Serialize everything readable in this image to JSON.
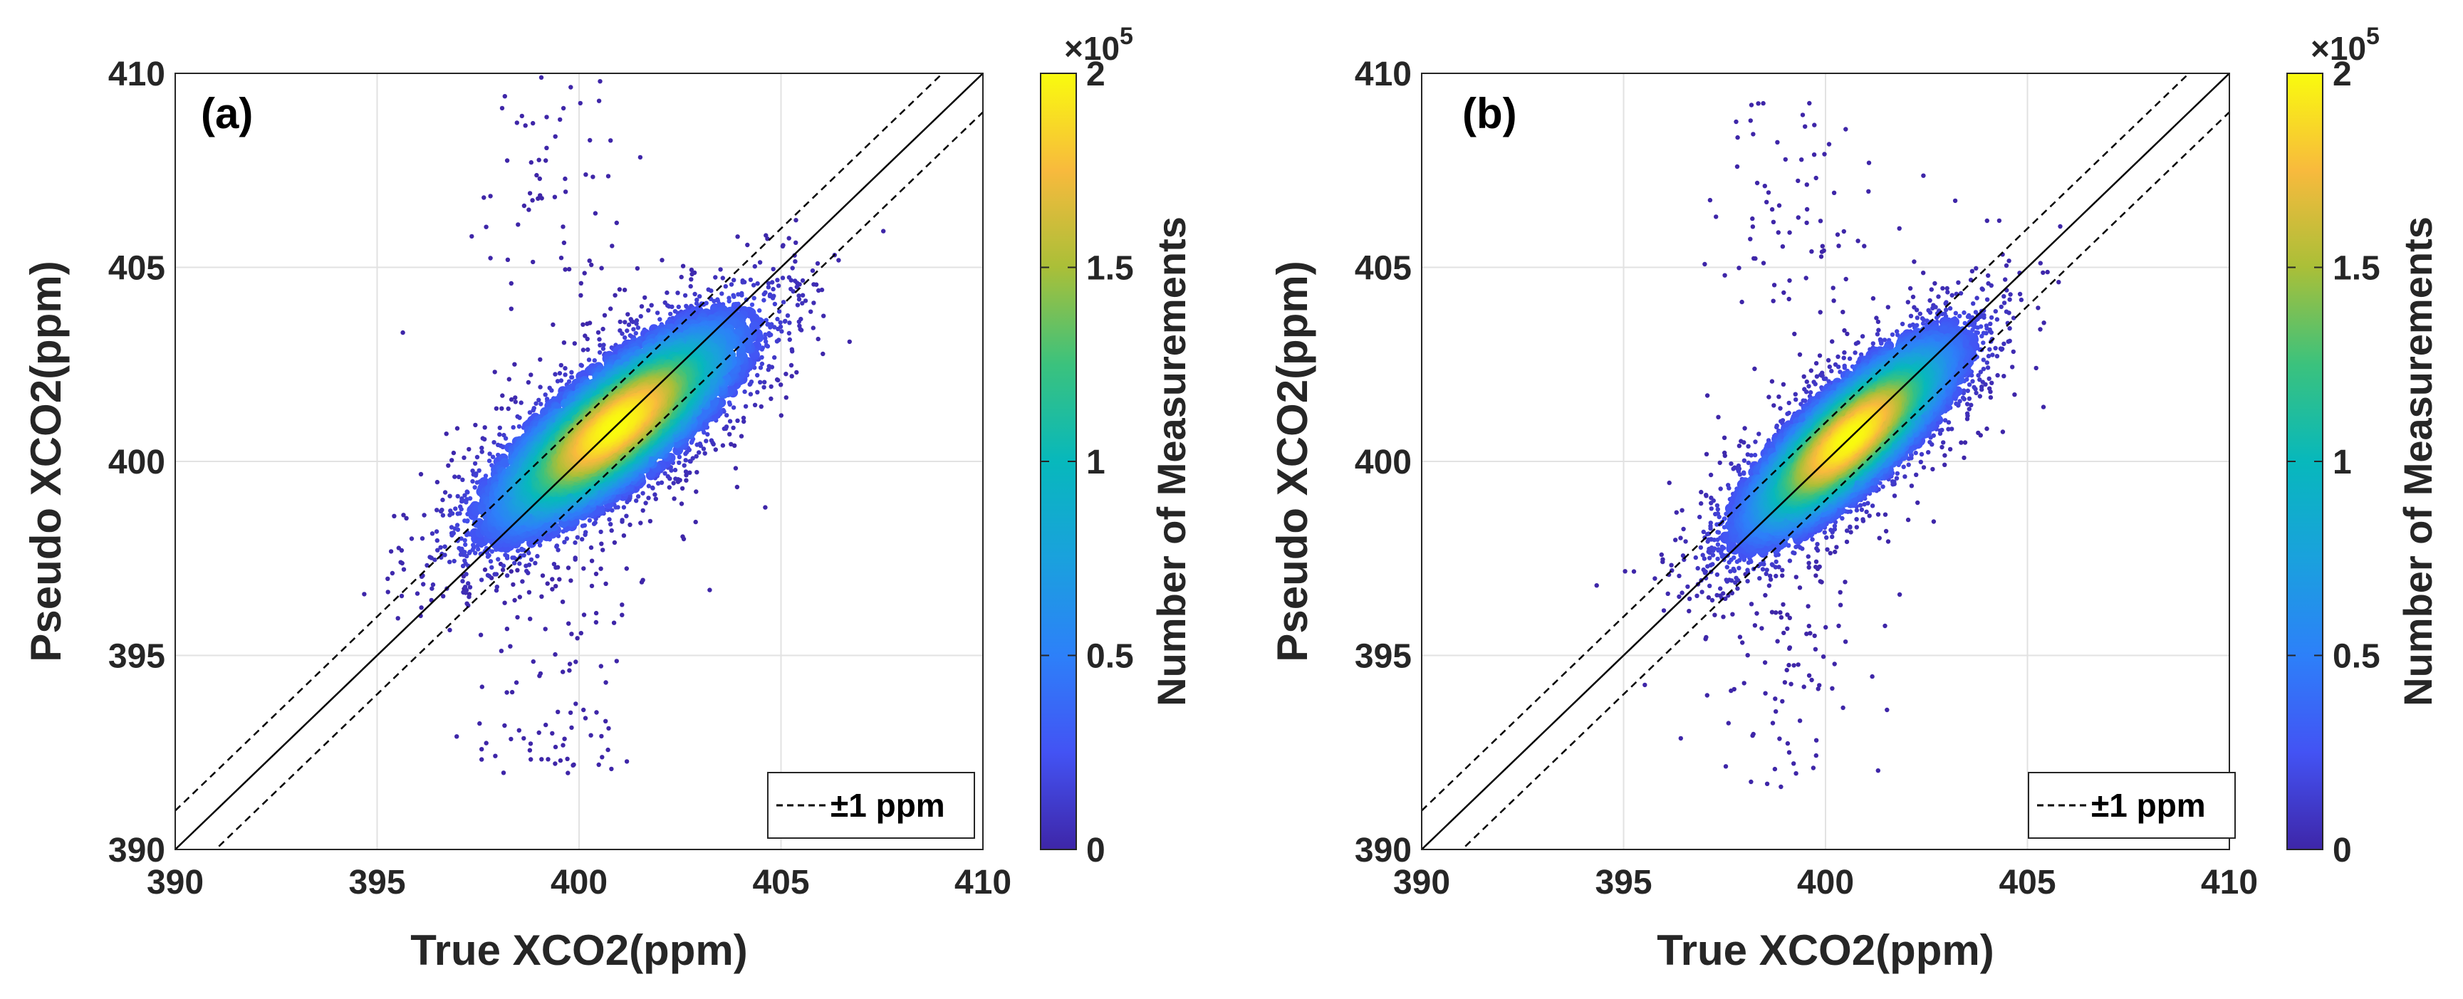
{
  "chart_data": [
    {
      "type": "scatter",
      "panel_label": "(a)",
      "xlabel": "True XCO2(ppm)",
      "ylabel": "Pseudo XCO2(ppm)",
      "xlim": [
        390,
        410
      ],
      "ylim": [
        390,
        410
      ],
      "x_ticks": [
        "390",
        "395",
        "400",
        "405",
        "410"
      ],
      "y_ticks": [
        "390",
        "395",
        "400",
        "405",
        "410"
      ],
      "grid": true,
      "lines": [
        {
          "name": "1:1",
          "style": "solid",
          "offset": 0
        },
        {
          "name": "±1 ppm",
          "style": "dashed",
          "offset": 1
        },
        {
          "name": "±1 ppm",
          "style": "dashed",
          "offset": -1
        }
      ],
      "legend": {
        "label": "±1 ppm",
        "position": "bottom-right"
      },
      "density": {
        "center": [
          400.9,
          400.9
        ],
        "sd_major": 2.2,
        "sd_minor": 0.75,
        "angle_deg": 40,
        "peak": 200000
      },
      "colorbar": {
        "label": "Number of Measurements",
        "range": [
          0,
          200000
        ],
        "tick_labels": [
          "0",
          "0.5",
          "1",
          "1.5",
          "2"
        ],
        "multiplier_base": "×10",
        "multiplier_exp": "5"
      }
    },
    {
      "type": "scatter",
      "panel_label": "(b)",
      "xlabel": "True XCO2(ppm)",
      "ylabel": "Pseudo XCO2(ppm)",
      "xlim": [
        390,
        410
      ],
      "ylim": [
        390,
        410
      ],
      "x_ticks": [
        "390",
        "395",
        "400",
        "405",
        "410"
      ],
      "y_ticks": [
        "390",
        "395",
        "400",
        "405",
        "410"
      ],
      "grid": true,
      "lines": [
        {
          "name": "1:1",
          "style": "solid",
          "offset": 0
        },
        {
          "name": "±1 ppm",
          "style": "dashed",
          "offset": 1
        },
        {
          "name": "±1 ppm",
          "style": "dashed",
          "offset": -1
        }
      ],
      "legend": {
        "label": "±1 ppm",
        "position": "bottom-right"
      },
      "density": {
        "center": [
          400.6,
          400.6
        ],
        "sd_major": 2.0,
        "sd_minor": 0.65,
        "angle_deg": 44,
        "peak": 200000
      },
      "colorbar": {
        "label": "Number of Measurements",
        "range": [
          0,
          200000
        ],
        "tick_labels": [
          "0",
          "0.5",
          "1",
          "1.5",
          "2"
        ],
        "multiplier_base": "×10",
        "multiplier_exp": "5"
      }
    }
  ]
}
